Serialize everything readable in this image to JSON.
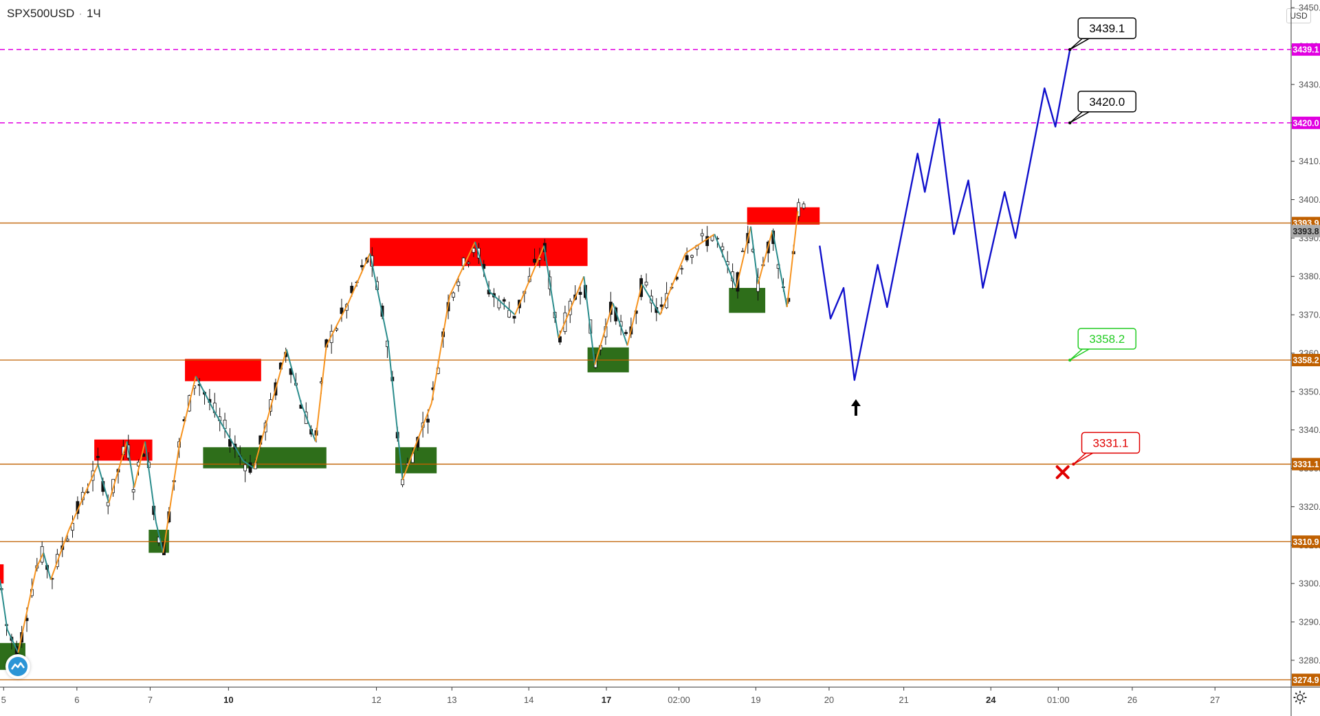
{
  "header": {
    "symbol": "SPX500USD",
    "interval": "1Ч",
    "currency": "USD"
  },
  "icons": {
    "logo": "tradingview-logo-icon",
    "settings": "gear-icon",
    "arrow": "up-arrow-icon",
    "cross": "x-mark-icon"
  },
  "colors": {
    "up": "#f7931e",
    "down": "#2a8c8c",
    "candle": "#111111",
    "forecast": "#1010cc",
    "magenta": "#e000e0",
    "level": "#c06000",
    "supply": "#ff0000",
    "demand": "#2e6e1a",
    "green_label": "#22cc22",
    "red_label": "#e00000",
    "price_tag": "#aaaaaa"
  },
  "chart_data": {
    "type": "line",
    "title": "SPX500USD · 1Ч",
    "y_axis": {
      "ticks": [
        3280.0,
        3290.0,
        3300.0,
        3310.0,
        3320.0,
        3330.0,
        3340.0,
        3350.0,
        3360.0,
        3370.0,
        3380.0,
        3390.0,
        3400.0,
        3410.0,
        3420.0,
        3430.0,
        3440.0,
        3450.0
      ],
      "range": [
        3273,
        3452
      ]
    },
    "x_axis": {
      "ticks": [
        {
          "label": "5",
          "bold": false
        },
        {
          "label": "6",
          "bold": false
        },
        {
          "label": "7",
          "bold": false
        },
        {
          "label": "10",
          "bold": true
        },
        {
          "label": "12",
          "bold": false
        },
        {
          "label": "13",
          "bold": false
        },
        {
          "label": "14",
          "bold": false
        },
        {
          "label": "17",
          "bold": true
        },
        {
          "label": "02:00",
          "bold": false
        },
        {
          "label": "19",
          "bold": false
        },
        {
          "label": "20",
          "bold": false
        },
        {
          "label": "21",
          "bold": false
        },
        {
          "label": "24",
          "bold": true
        },
        {
          "label": "01:00",
          "bold": false
        },
        {
          "label": "26",
          "bold": false
        },
        {
          "label": "27",
          "bold": false
        }
      ],
      "tick_t": [
        0.5,
        10.6,
        20.7,
        31.5,
        51.9,
        62.3,
        72.9,
        83.6,
        93.6,
        104.2,
        114.3,
        124.6,
        136.6,
        145.9,
        156.1,
        167.5
      ]
    },
    "horizontal_levels": [
      {
        "label": "3439.1",
        "value": 3439.1,
        "style": "magenta-dashed"
      },
      {
        "label": "3420.0",
        "value": 3420.0,
        "style": "magenta-dashed"
      },
      {
        "label": "3393.9",
        "value": 3393.9,
        "style": "brown"
      },
      {
        "label": "3358.2",
        "value": 3358.2,
        "style": "brown"
      },
      {
        "label": "3331.1",
        "value": 3331.1,
        "style": "brown"
      },
      {
        "label": "3310.9",
        "value": 3310.9,
        "style": "brown"
      },
      {
        "label": "3274.9",
        "value": 3274.9,
        "style": "brown"
      }
    ],
    "current_price": {
      "label": "3393.8",
      "value": 3393.8
    },
    "zones": [
      {
        "kind": "supply",
        "t0": 0.0,
        "t1": 0.5,
        "top": 3305.0,
        "bottom": 3300.0
      },
      {
        "kind": "supply",
        "t0": 13.0,
        "t1": 21.0,
        "top": 3337.5,
        "bottom": 3332.0
      },
      {
        "kind": "supply",
        "t0": 25.5,
        "t1": 36.0,
        "top": 3358.5,
        "bottom": 3352.7
      },
      {
        "kind": "supply",
        "t0": 51.0,
        "t1": 81.0,
        "top": 3390.0,
        "bottom": 3382.7
      },
      {
        "kind": "supply",
        "t0": 103.0,
        "t1": 113.0,
        "top": 3398.0,
        "bottom": 3393.5
      },
      {
        "kind": "demand",
        "t0": 0.0,
        "t1": 3.5,
        "top": 3284.5,
        "bottom": 3277.5
      },
      {
        "kind": "demand",
        "t0": 20.5,
        "t1": 23.3,
        "top": 3314.0,
        "bottom": 3308.0
      },
      {
        "kind": "demand",
        "t0": 28.0,
        "t1": 45.0,
        "top": 3335.5,
        "bottom": 3330.0
      },
      {
        "kind": "demand",
        "t0": 54.5,
        "t1": 60.2,
        "top": 3335.5,
        "bottom": 3328.7
      },
      {
        "kind": "demand",
        "t0": 81.0,
        "t1": 86.7,
        "top": 3361.5,
        "bottom": 3355.0
      },
      {
        "kind": "demand",
        "t0": 100.5,
        "t1": 105.5,
        "top": 3377.0,
        "bottom": 3370.5
      }
    ],
    "zigzag": [
      {
        "t": 0.0,
        "v": 3301
      },
      {
        "t": 1.0,
        "v": 3288
      },
      {
        "t": 2.5,
        "v": 3282
      },
      {
        "t": 5.0,
        "v": 3304
      },
      {
        "t": 6.0,
        "v": 3308
      },
      {
        "t": 7.0,
        "v": 3301
      },
      {
        "t": 9.5,
        "v": 3314
      },
      {
        "t": 13.5,
        "v": 3331
      },
      {
        "t": 15.0,
        "v": 3321
      },
      {
        "t": 17.5,
        "v": 3337
      },
      {
        "t": 18.5,
        "v": 3325
      },
      {
        "t": 20.0,
        "v": 3337
      },
      {
        "t": 21.5,
        "v": 3316
      },
      {
        "t": 22.5,
        "v": 3308
      },
      {
        "t": 24.8,
        "v": 3337
      },
      {
        "t": 27.0,
        "v": 3354
      },
      {
        "t": 29.5,
        "v": 3345
      },
      {
        "t": 33.5,
        "v": 3332
      },
      {
        "t": 35.0,
        "v": 3330
      },
      {
        "t": 39.5,
        "v": 3361
      },
      {
        "t": 41.5,
        "v": 3347
      },
      {
        "t": 43.5,
        "v": 3337
      },
      {
        "t": 45.0,
        "v": 3362
      },
      {
        "t": 48.0,
        "v": 3373
      },
      {
        "t": 51.0,
        "v": 3386
      },
      {
        "t": 53.5,
        "v": 3363
      },
      {
        "t": 55.5,
        "v": 3327
      },
      {
        "t": 59.5,
        "v": 3347
      },
      {
        "t": 62.0,
        "v": 3375
      },
      {
        "t": 65.5,
        "v": 3389
      },
      {
        "t": 67.5,
        "v": 3376
      },
      {
        "t": 71.0,
        "v": 3370
      },
      {
        "t": 75.0,
        "v": 3388
      },
      {
        "t": 77.0,
        "v": 3364
      },
      {
        "t": 80.5,
        "v": 3380
      },
      {
        "t": 82.0,
        "v": 3357
      },
      {
        "t": 84.5,
        "v": 3373
      },
      {
        "t": 86.5,
        "v": 3362
      },
      {
        "t": 88.5,
        "v": 3378
      },
      {
        "t": 91.0,
        "v": 3370
      },
      {
        "t": 94.5,
        "v": 3386
      },
      {
        "t": 98.5,
        "v": 3391
      },
      {
        "t": 101.5,
        "v": 3377
      },
      {
        "t": 103.5,
        "v": 3393
      },
      {
        "t": 104.5,
        "v": 3378
      },
      {
        "t": 106.5,
        "v": 3392
      },
      {
        "t": 108.5,
        "v": 3372
      },
      {
        "t": 110.0,
        "v": 3397
      }
    ],
    "forecast_path": [
      {
        "t": 113.0,
        "v": 3388
      },
      {
        "t": 114.5,
        "v": 3369
      },
      {
        "t": 116.3,
        "v": 3377
      },
      {
        "t": 117.8,
        "v": 3353
      },
      {
        "t": 121.0,
        "v": 3383
      },
      {
        "t": 122.3,
        "v": 3372
      },
      {
        "t": 126.5,
        "v": 3412
      },
      {
        "t": 127.5,
        "v": 3402
      },
      {
        "t": 129.5,
        "v": 3421
      },
      {
        "t": 131.5,
        "v": 3391
      },
      {
        "t": 133.5,
        "v": 3405
      },
      {
        "t": 135.5,
        "v": 3377
      },
      {
        "t": 138.5,
        "v": 3402
      },
      {
        "t": 140.0,
        "v": 3390
      },
      {
        "t": 144.0,
        "v": 3429
      },
      {
        "t": 145.5,
        "v": 3419
      },
      {
        "t": 147.5,
        "v": 3439
      }
    ],
    "callouts": [
      {
        "label": "3439.1",
        "value": 3439.1,
        "t": 147.5,
        "color": "#000000"
      },
      {
        "label": "3420.0",
        "value": 3420.0,
        "t": 147.5,
        "color": "#000000"
      },
      {
        "label": "3358.2",
        "value": 3358.2,
        "t": 147.5,
        "color": "#22cc22"
      },
      {
        "label": "3331.1",
        "value": 3331.1,
        "t": 148.0,
        "color": "#e00000"
      }
    ],
    "marks": {
      "arrow_t": 118.0,
      "arrow_v": 3348,
      "cross_t": 146.5,
      "cross_v": 3329
    }
  }
}
